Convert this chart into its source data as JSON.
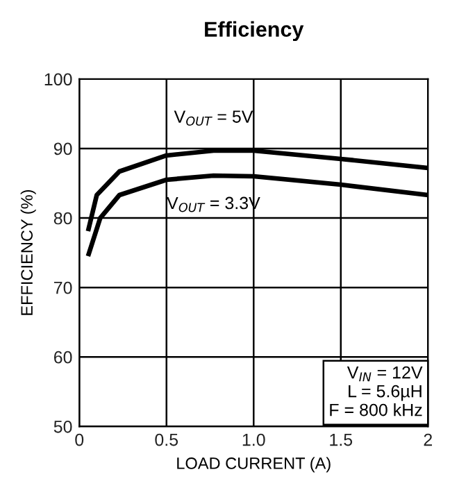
{
  "chart_data": {
    "type": "line",
    "title": "Efficiency",
    "xlabel": "LOAD CURRENT (A)",
    "ylabel": "EFFICIENCY (%)",
    "xlim": [
      0,
      2
    ],
    "xticks": [
      0,
      0.5,
      {
        "value": 1,
        "label": "1.0"
      },
      1.5,
      2
    ],
    "ylim": [
      50,
      100
    ],
    "yticks": [
      50,
      60,
      70,
      80,
      90,
      100
    ],
    "grid": true,
    "legend": false,
    "marker": "none",
    "line_style": "solid",
    "series": [
      {
        "name": "V$_{OUT}$ = 5V",
        "color": "#000000",
        "x": [
          0.05,
          0.1,
          0.23,
          0.5,
          0.77,
          1.0,
          1.5,
          2.0
        ],
        "values": [
          78.1,
          83.3,
          86.7,
          89.0,
          89.7,
          89.7,
          88.5,
          87.2
        ]
      },
      {
        "name": "V$_{OUT}$ = 3.3V",
        "color": "#000000",
        "x": [
          0.05,
          0.12,
          0.23,
          0.5,
          0.77,
          1.0,
          1.5,
          2.0
        ],
        "values": [
          74.5,
          80.0,
          83.3,
          85.5,
          86.1,
          86.0,
          84.8,
          83.3
        ]
      }
    ],
    "annotations": [
      "V$_{IN}$ = 12V\nL = 5.6µH\nF = 800 kHz"
    ]
  }
}
